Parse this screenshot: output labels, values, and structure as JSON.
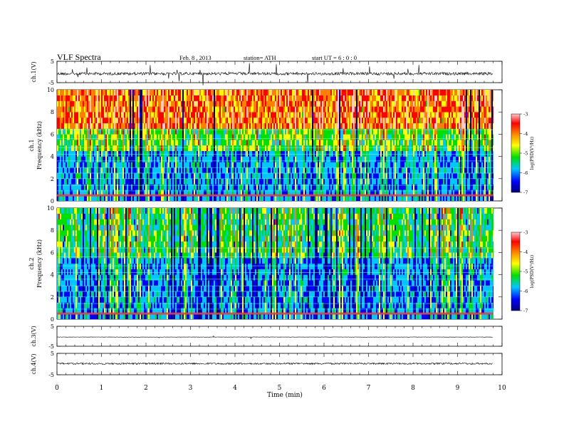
{
  "header": {
    "title": "VLF Spectra",
    "date": "Feb. 8  , 2013",
    "station": "station= ATH",
    "start": "start UT =   6 : 0 : 0"
  },
  "colors": {
    "spec_background": "#1a2fd0",
    "cb_stops": [
      "#00007a",
      "#0000ff",
      "#00c8ff",
      "#00e000",
      "#ffff00",
      "#ff8000",
      "#ff0000",
      "#ffc8c8"
    ]
  },
  "chart_data": [
    {
      "type": "line",
      "id": "ch1-waveform",
      "ylabel": "ch.1(V)",
      "yticks": [
        "5",
        "-5"
      ],
      "ylim": [
        -5,
        5
      ],
      "description_level": -0.8
    },
    {
      "type": "heatmap",
      "id": "ch1-spectrogram",
      "ylabel_1": "ch.1",
      "ylabel_2": "Frequency  (kHz)",
      "yticks": [
        "0",
        "2",
        "4",
        "6",
        "8",
        "10"
      ],
      "ylim": [
        0,
        10
      ],
      "xlim": [
        0,
        10
      ],
      "colorbar": {
        "label": "log(PSD(V²/Hz)",
        "ticks": [
          "-3",
          "-4",
          "-5",
          "-6",
          "-7"
        ],
        "range": [
          -7,
          -3
        ]
      }
    },
    {
      "type": "heatmap",
      "id": "ch2-spectrogram",
      "ylabel_1": "ch.2",
      "ylabel_2": "Frequency  (kHz)",
      "yticks": [
        "0",
        "2",
        "4",
        "6",
        "8",
        "10"
      ],
      "ylim": [
        0,
        10
      ],
      "xlim": [
        0,
        10
      ],
      "colorbar": {
        "label": "log(PSD(V²/Hz)",
        "ticks": [
          "-3",
          "-4",
          "-5",
          "-6",
          "-7"
        ],
        "range": [
          -7,
          -3
        ]
      }
    },
    {
      "type": "line",
      "id": "ch3-waveform",
      "ylabel": "ch.3(V)",
      "yticks": [
        "5",
        "-5"
      ],
      "ylim": [
        -5,
        5
      ]
    },
    {
      "type": "line",
      "id": "ch4-waveform",
      "ylabel": "ch.4(V)",
      "yticks": [
        "5",
        "-5"
      ],
      "ylim": [
        -5,
        5
      ]
    }
  ],
  "xaxis": {
    "label": "Time  (min)",
    "ticks": [
      "0",
      "1",
      "2",
      "3",
      "4",
      "5",
      "6",
      "7",
      "8",
      "9",
      "10"
    ],
    "range": [
      0,
      10
    ],
    "data_end": 9.8
  }
}
